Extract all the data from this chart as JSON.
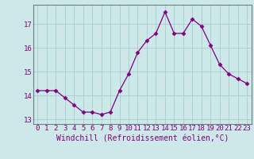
{
  "hours": [
    0,
    1,
    2,
    3,
    4,
    5,
    6,
    7,
    8,
    9,
    10,
    11,
    12,
    13,
    14,
    15,
    16,
    17,
    18,
    19,
    20,
    21,
    22,
    23
  ],
  "values": [
    14.2,
    14.2,
    14.2,
    13.9,
    13.6,
    13.3,
    13.3,
    13.2,
    13.3,
    14.2,
    14.9,
    15.8,
    16.3,
    16.6,
    17.5,
    16.6,
    16.6,
    17.2,
    16.9,
    16.1,
    15.3,
    14.9,
    14.7,
    14.5
  ],
  "xlabel": "Windchill (Refroidissement éolien,°C)",
  "ylim": [
    12.8,
    17.8
  ],
  "yticks": [
    13,
    14,
    15,
    16,
    17
  ],
  "xlim": [
    -0.5,
    23.5
  ],
  "xticks": [
    0,
    1,
    2,
    3,
    4,
    5,
    6,
    7,
    8,
    9,
    10,
    11,
    12,
    13,
    14,
    15,
    16,
    17,
    18,
    19,
    20,
    21,
    22,
    23
  ],
  "line_color": "#800080",
  "marker": "D",
  "marker_size": 2.5,
  "bg_color": "#cce8e8",
  "grid_color": "#aacccc",
  "tick_label_fontsize": 6.5,
  "xlabel_fontsize": 7.0
}
